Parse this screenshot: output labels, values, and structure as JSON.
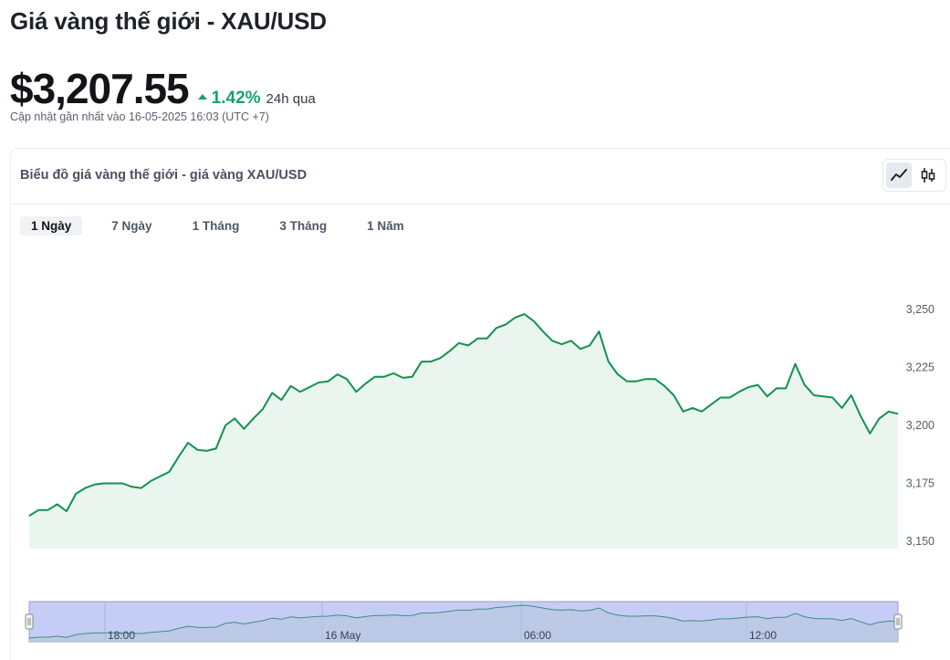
{
  "header": {
    "title": "Giá vàng thế giới - XAU/USD",
    "price": "$3,207.55",
    "change_percent": "1.42%",
    "change_period": "24h qua",
    "change_direction": "up",
    "updated": "Cập nhật gần nhất vào 16-05-2025 16:03 (UTC +7)"
  },
  "chart_card": {
    "title": "Biểu đồ giá vàng thế giới - giá vàng XAU/USD",
    "chart_type_buttons": [
      {
        "icon": "line-chart-icon",
        "active": true
      },
      {
        "icon": "candlestick-icon",
        "active": false
      }
    ],
    "tabs": [
      {
        "label": "1 Ngày",
        "active": true
      },
      {
        "label": "7 Ngày",
        "active": false
      },
      {
        "label": "1 Tháng",
        "active": false
      },
      {
        "label": "3 Tháng",
        "active": false
      },
      {
        "label": "1 Năm",
        "active": false
      }
    ]
  },
  "colors": {
    "line": "#12924f",
    "area": "#eaf5ef",
    "positive": "#16a36a",
    "navigator_fill": "#c5cdf6",
    "navigator_border": "#9aa3c4"
  },
  "chart_data": {
    "type": "area",
    "ylim": [
      3145,
      3260
    ],
    "y_ticks": [
      3150,
      3175,
      3200,
      3225,
      3250
    ],
    "y_tick_labels": [
      "3,150",
      "3,175",
      "3,200",
      "3,225",
      "3,250"
    ],
    "navigator_labels": [
      "18:00",
      "16 May",
      "06:00",
      "12:00"
    ],
    "series": [
      {
        "values": [
          3161,
          3163.5,
          3163.5,
          3166,
          3163,
          3170.5,
          3173,
          3174.5,
          3175,
          3175,
          3175,
          3173.5,
          3173,
          3176,
          3178,
          3180,
          3186.5,
          3192.5,
          3189.5,
          3189,
          3190,
          3200,
          3203,
          3198.5,
          3203,
          3207,
          3214,
          3211,
          3217,
          3214.5,
          3216.5,
          3218.5,
          3219,
          3222,
          3220,
          3214.5,
          3218,
          3221,
          3221,
          3222.5,
          3220.5,
          3221,
          3227.5,
          3227.5,
          3229,
          3232,
          3235.5,
          3234.5,
          3237.5,
          3237.5,
          3242,
          3243.5,
          3246.5,
          3248,
          3245,
          3240.5,
          3236.5,
          3235,
          3236.5,
          3233,
          3234.5,
          3240.5,
          3227.5,
          3222,
          3219,
          3219,
          3220,
          3220,
          3217,
          3213,
          3206,
          3207.5,
          3206,
          3209,
          3212,
          3212,
          3214.5,
          3216.5,
          3217.5,
          3212.5,
          3216,
          3216,
          3226.5,
          3217.5,
          3213,
          3212.5,
          3212,
          3207.5,
          3213,
          3204,
          3196.5,
          3203,
          3206,
          3205
        ]
      }
    ]
  }
}
